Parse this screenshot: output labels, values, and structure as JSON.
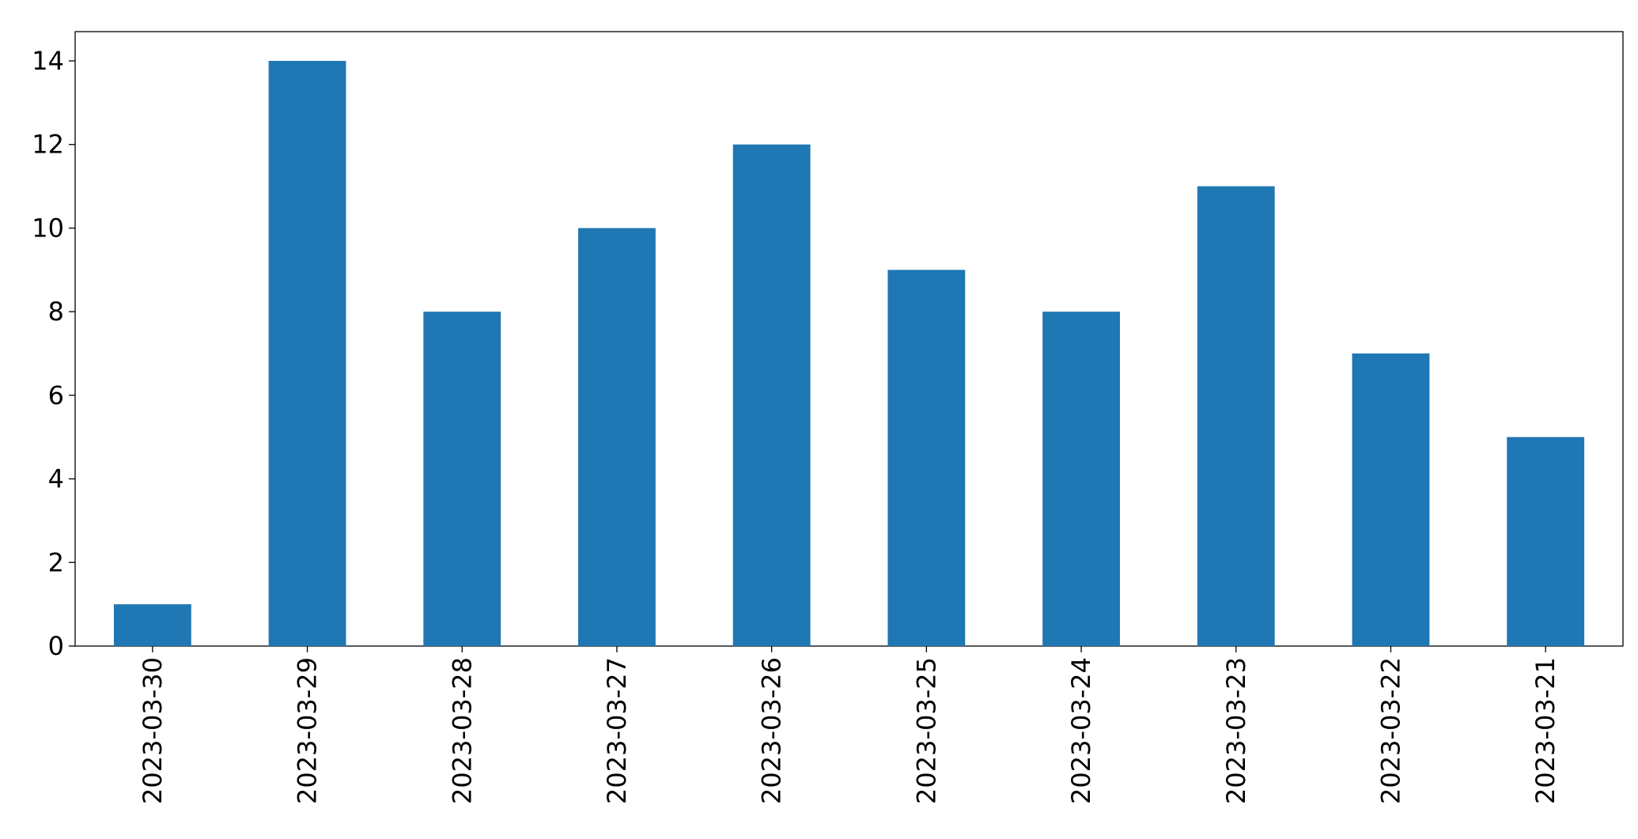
{
  "chart_data": {
    "type": "bar",
    "categories": [
      "2023-03-30",
      "2023-03-29",
      "2023-03-28",
      "2023-03-27",
      "2023-03-26",
      "2023-03-25",
      "2023-03-24",
      "2023-03-23",
      "2023-03-22",
      "2023-03-21"
    ],
    "values": [
      1,
      14,
      8,
      10,
      12,
      9,
      8,
      11,
      7,
      5
    ],
    "color": "#1f77b4",
    "ylim": [
      0,
      14.7
    ],
    "yticks": [
      0,
      2,
      4,
      6,
      8,
      10,
      12,
      14
    ],
    "grid": false
  }
}
